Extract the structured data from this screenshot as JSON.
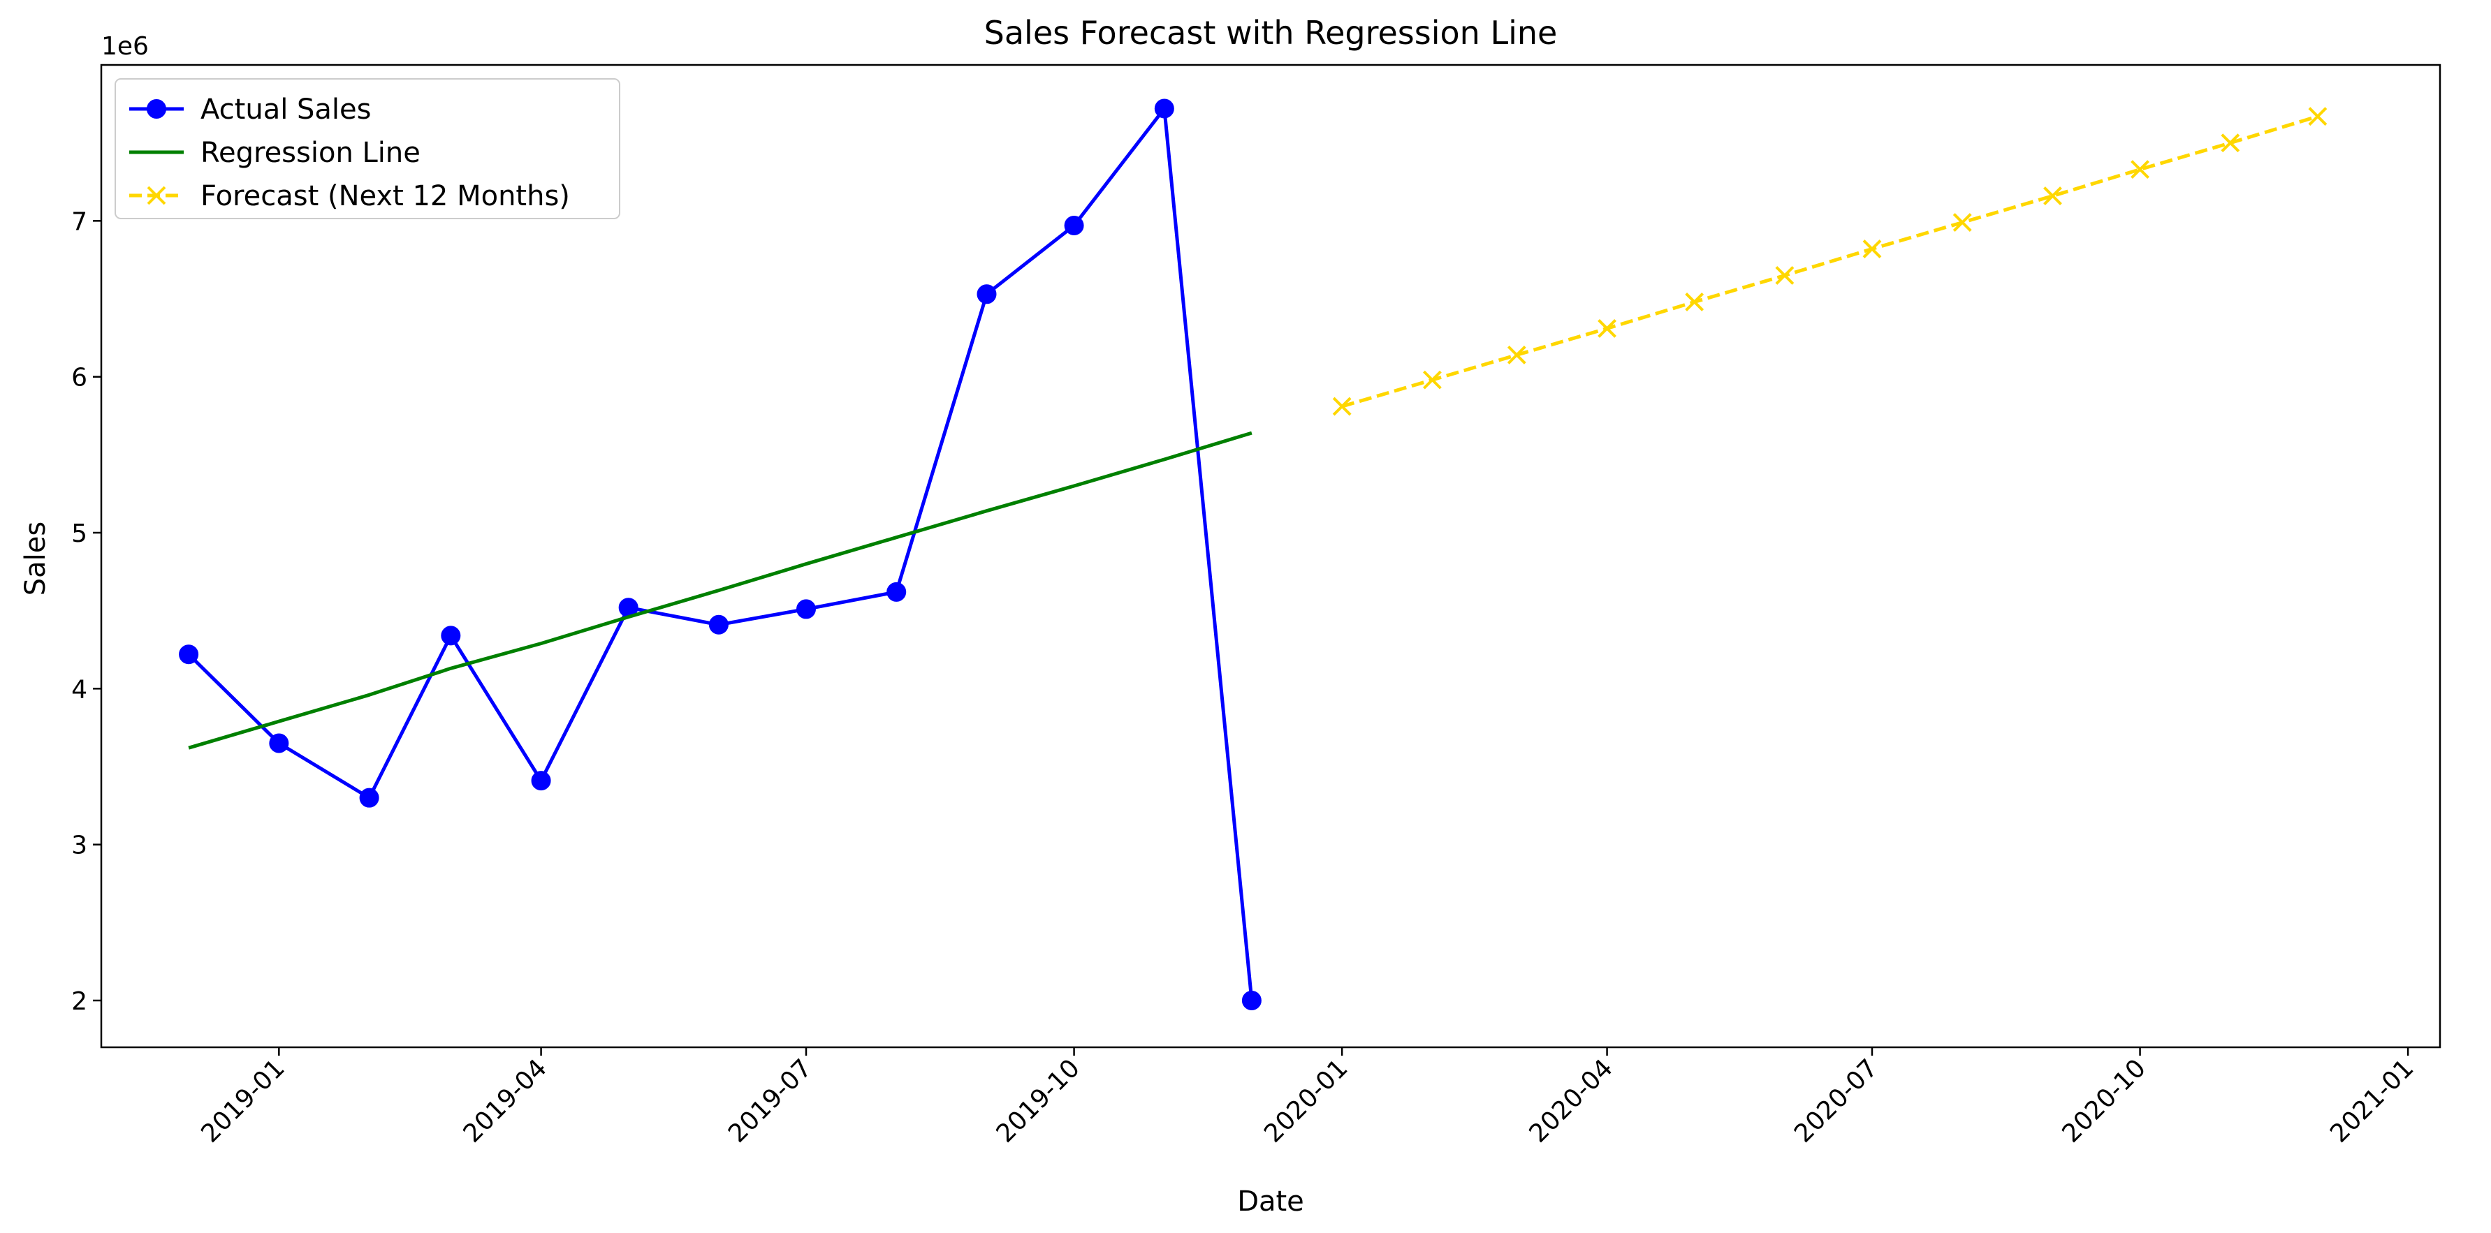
{
  "chart_data": {
    "type": "line",
    "title": "Sales Forecast with Regression Line",
    "xlabel": "Date",
    "ylabel": "Sales",
    "y_multiplier_label": "1e6",
    "y_scale": 1000000,
    "xlim": [
      "2018-11-01",
      "2021-01-12"
    ],
    "ylim": [
      1700000,
      8000000
    ],
    "grid": false,
    "legend_position": "top-left",
    "x_ticks": [
      {
        "date": "2019-01-01",
        "label": "2019-01"
      },
      {
        "date": "2019-04-01",
        "label": "2019-04"
      },
      {
        "date": "2019-07-01",
        "label": "2019-07"
      },
      {
        "date": "2019-10-01",
        "label": "2019-10"
      },
      {
        "date": "2020-01-01",
        "label": "2020-01"
      },
      {
        "date": "2020-04-01",
        "label": "2020-04"
      },
      {
        "date": "2020-07-01",
        "label": "2020-07"
      },
      {
        "date": "2020-10-01",
        "label": "2020-10"
      },
      {
        "date": "2021-01-01",
        "label": "2021-01"
      }
    ],
    "y_ticks": [
      {
        "value": 2000000,
        "label": "2"
      },
      {
        "value": 3000000,
        "label": "3"
      },
      {
        "value": 4000000,
        "label": "4"
      },
      {
        "value": 5000000,
        "label": "5"
      },
      {
        "value": 6000000,
        "label": "6"
      },
      {
        "value": 7000000,
        "label": "7"
      }
    ],
    "series": [
      {
        "name": "Actual Sales",
        "color": "#0000ff",
        "style": "solid",
        "marker": "circle",
        "x": [
          "2018-12-01",
          "2019-01-01",
          "2019-02-01",
          "2019-03-01",
          "2019-04-01",
          "2019-05-01",
          "2019-06-01",
          "2019-07-01",
          "2019-08-01",
          "2019-09-01",
          "2019-10-01",
          "2019-11-01",
          "2019-12-01"
        ],
        "values": [
          4220000,
          3650000,
          3300000,
          4340000,
          3410000,
          4520000,
          4410000,
          4510000,
          4620000,
          6530000,
          6970000,
          7720000,
          2000000
        ]
      },
      {
        "name": "Regression Line",
        "color": "#008000",
        "style": "solid",
        "marker": "none",
        "x": [
          "2018-12-01",
          "2019-01-01",
          "2019-02-01",
          "2019-03-01",
          "2019-04-01",
          "2019-05-01",
          "2019-06-01",
          "2019-07-01",
          "2019-08-01",
          "2019-09-01",
          "2019-10-01",
          "2019-11-01",
          "2019-12-01"
        ],
        "values": [
          3620000,
          3790000,
          3960000,
          4130000,
          4290000,
          4460000,
          4630000,
          4800000,
          4970000,
          5140000,
          5300000,
          5470000,
          5640000
        ]
      },
      {
        "name": "Forecast (Next 12 Months)",
        "color": "#ffd700",
        "style": "dashed",
        "marker": "x",
        "x": [
          "2020-01-01",
          "2020-02-01",
          "2020-03-01",
          "2020-04-01",
          "2020-05-01",
          "2020-06-01",
          "2020-07-01",
          "2020-08-01",
          "2020-09-01",
          "2020-10-01",
          "2020-11-01",
          "2020-12-01"
        ],
        "values": [
          5810000,
          5980000,
          6140000,
          6310000,
          6480000,
          6650000,
          6820000,
          6990000,
          7160000,
          7330000,
          7500000,
          7670000
        ]
      }
    ]
  }
}
